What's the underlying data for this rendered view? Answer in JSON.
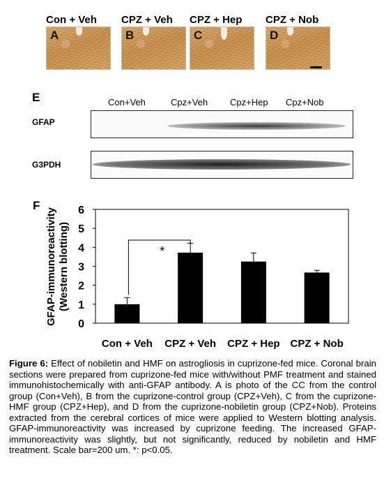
{
  "panels": {
    "images": [
      {
        "title": "Con + Veh",
        "letter": "A"
      },
      {
        "title": "CPZ + Veh",
        "letter": "B"
      },
      {
        "title": "CPZ + Hep",
        "letter": "C"
      },
      {
        "title": "CPZ + Nob",
        "letter": "D"
      }
    ],
    "blot": {
      "letter": "E",
      "lanes": [
        "Con+Veh",
        "Cpz+Veh",
        "Cpz+Hep",
        "Cpz+Nob"
      ],
      "rows": [
        "GFAP",
        "G3PDH"
      ]
    },
    "chart": {
      "letter": "F",
      "ylabel_line1": "GFAP-immunoreactivity",
      "ylabel_line2": "(Western blotting)",
      "significance_mark": "*"
    }
  },
  "chart_data": {
    "type": "bar",
    "categories": [
      "Con + Veh",
      "CPZ + Veh",
      "CPZ + Hep",
      "CPZ + Nob"
    ],
    "values": [
      1.0,
      3.72,
      3.25,
      2.67
    ],
    "errors": [
      0.35,
      0.5,
      0.45,
      0.12
    ],
    "ylim": [
      0,
      6
    ],
    "yticks": [
      "0",
      "1",
      "2",
      "3",
      "4",
      "5",
      "6"
    ],
    "ylabel": "GFAP-immunoreactivity (Western blotting)",
    "significance": {
      "from": "Con + Veh",
      "to": "CPZ + Veh",
      "label": "*"
    },
    "bar_color": "#000000"
  },
  "caption": {
    "label": "Figure 6:",
    "text": " Effect of nobiletin and HMF on astrogliosis in cuprizone-fed mice. Coronal brain sections were prepared from cuprizone-fed mice with/without PMF treatment and stained immunohistochemically with anti-GFAP antibody. A is photo of the CC from the control group (Con+Veh), B from the cuprizone-control group (CPZ+Veh), C from the cuprizone-HMF group (CPZ+Hep), and D from the cuprizone-nobiletin group (CPZ+Nob). Proteins extracted from the cerebral cortices of mice were applied to Western blotting analysis. GFAP-immunoreactivity was increased by cuprizone feeding. The increased GFAP-immunoreactivity was slightly, but not significantly, reduced by nobiletin and HMF treatment. Scale bar=200 um. *: p<0.05."
  }
}
